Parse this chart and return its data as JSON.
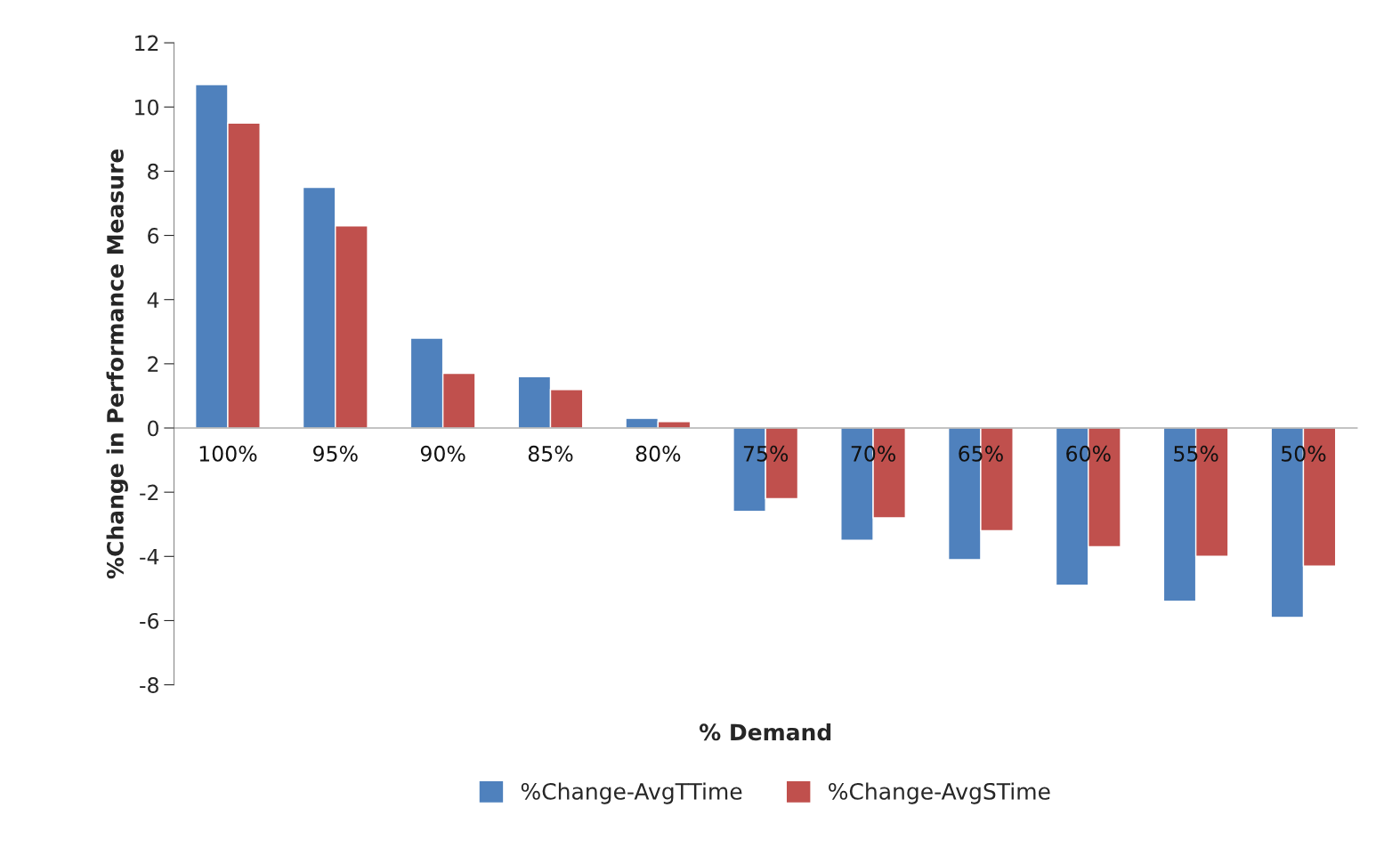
{
  "chart_data": {
    "type": "bar",
    "xlabel": "% Demand",
    "ylabel": "%Change in Performance Measure",
    "categories": [
      "100%",
      "95%",
      "90%",
      "85%",
      "80%",
      "75%",
      "70%",
      "65%",
      "60%",
      "55%",
      "50%"
    ],
    "series": [
      {
        "name": "%Change-AvgTTime",
        "color": "#4f81bd",
        "values": [
          10.7,
          7.5,
          2.8,
          1.6,
          0.3,
          -2.6,
          -3.5,
          -4.1,
          -4.9,
          -5.4,
          -5.9
        ]
      },
      {
        "name": "%Change-AvgSTime",
        "color": "#c0504d",
        "values": [
          9.5,
          6.3,
          1.7,
          1.2,
          0.2,
          -2.2,
          -2.8,
          -3.2,
          -3.7,
          -4.0,
          -4.3
        ]
      }
    ],
    "ylim": [
      -8,
      12
    ],
    "yticks": [
      -8,
      -6,
      -4,
      -2,
      0,
      2,
      4,
      6,
      8,
      10,
      12
    ],
    "grid": false,
    "legend": "bottom"
  }
}
